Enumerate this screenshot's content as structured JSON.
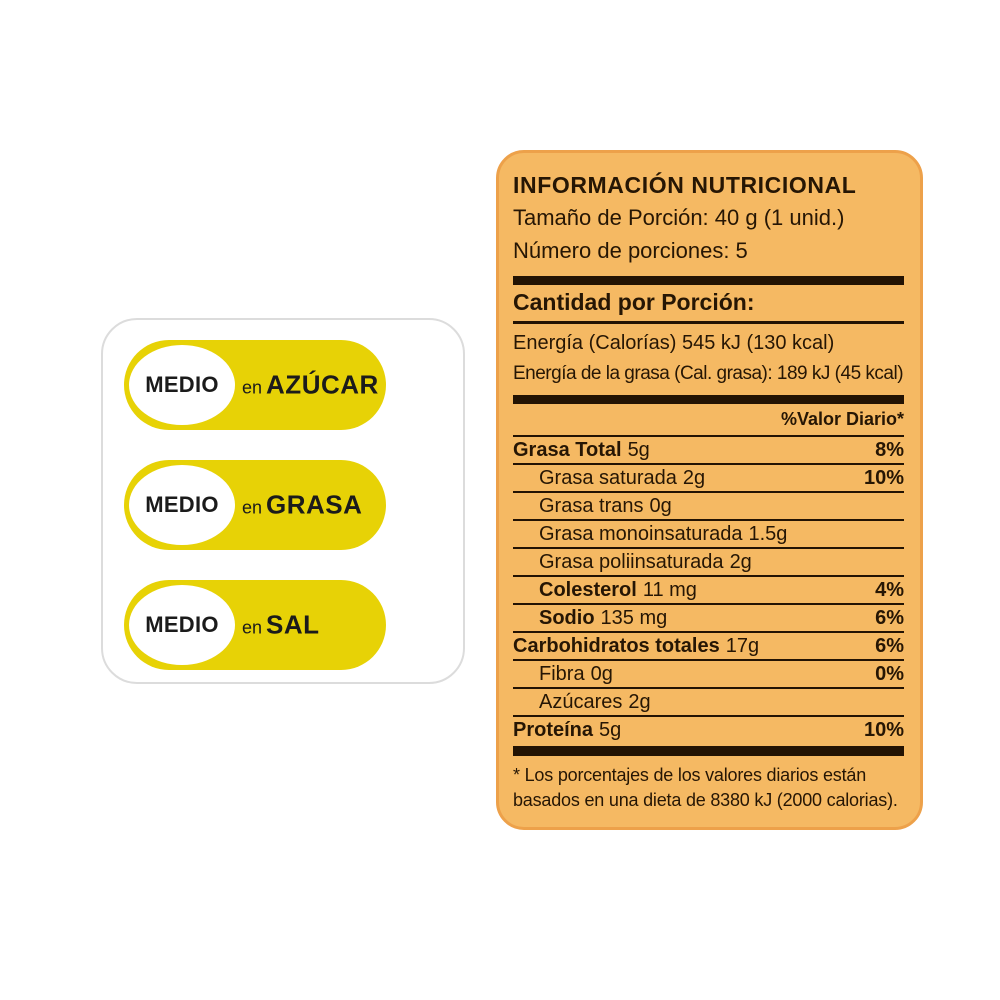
{
  "claims": {
    "items": [
      {
        "level": "MEDIO",
        "prefix": "en",
        "nutrient": "AZÚCAR"
      },
      {
        "level": "MEDIO",
        "prefix": "en",
        "nutrient": "GRASA"
      },
      {
        "level": "MEDIO",
        "prefix": "en",
        "nutrient": "SAL"
      }
    ],
    "pill_color": "#e7d206",
    "text_color": "#1b1b1b",
    "card_border_color": "#dcdcdc"
  },
  "label": {
    "title": "INFORMACIÓN NUTRICIONAL",
    "serving_size": "Tamaño de Porción: 40 g (1 unid.)",
    "servings_count": "Número de porciones: 5",
    "amount_header": "Cantidad por Porción:",
    "energy_rows": [
      "Energía (Calorías) 545 kJ (130 kcal)",
      "Energía de la grasa (Cal. grasa): 189 kJ (45 kcal)"
    ],
    "daily_value_header": "%Valor Diario*",
    "rows": [
      {
        "name": "Grasa Total",
        "value": "5g",
        "pct": "8%",
        "bold": true,
        "indent": false
      },
      {
        "name": "Grasa saturada",
        "value": "2g",
        "pct": "10%",
        "bold": false,
        "indent": true
      },
      {
        "name": "Grasa trans",
        "value": "0g",
        "pct": "",
        "bold": false,
        "indent": true
      },
      {
        "name": "Grasa monoinsaturada",
        "value": "1.5g",
        "pct": "",
        "bold": false,
        "indent": true
      },
      {
        "name": "Grasa poliinsaturada",
        "value": "2g",
        "pct": "",
        "bold": false,
        "indent": true
      },
      {
        "name": "Colesterol",
        "value": "11 mg",
        "pct": "4%",
        "bold": true,
        "indent": true
      },
      {
        "name": "Sodio",
        "value": "135 mg",
        "pct": "6%",
        "bold": true,
        "indent": true
      },
      {
        "name": "Carbohidratos totales",
        "value": "17g",
        "pct": "6%",
        "bold": true,
        "indent": false
      },
      {
        "name": "Fibra",
        "value": "0g",
        "pct": "0%",
        "bold": false,
        "indent": true
      },
      {
        "name": "Azúcares",
        "value": "2g",
        "pct": "",
        "bold": false,
        "indent": true
      },
      {
        "name": "Proteína",
        "value": "5g",
        "pct": "10%",
        "bold": true,
        "indent": false
      }
    ],
    "footnote_line": "* Los porcentajes de los valores diarios están basados en una dieta de 8380 kJ (2000 calorias).",
    "bg_color": "#f5b963",
    "border_color": "#eda14a",
    "text_color": "#261604",
    "bar_color": "#231303"
  }
}
